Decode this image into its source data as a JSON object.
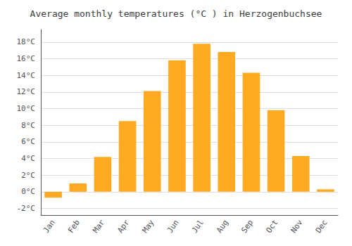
{
  "chart_data": {
    "type": "bar",
    "title": "Average monthly temperatures (°C ) in Herzogenbuchsee",
    "categories": [
      "Jan",
      "Feb",
      "Mar",
      "Apr",
      "May",
      "Jun",
      "Jul",
      "Aug",
      "Sep",
      "Oct",
      "Nov",
      "Dec"
    ],
    "values": [
      -0.7,
      1.0,
      4.2,
      8.5,
      12.1,
      15.8,
      17.8,
      16.8,
      14.3,
      9.8,
      4.3,
      0.3
    ],
    "color": "#FFAA22",
    "ylim": [
      -2.8,
      19.5
    ],
    "yticks": [
      {
        "value": -2,
        "label": "-2°C"
      },
      {
        "value": 0,
        "label": "0°C"
      },
      {
        "value": 2,
        "label": "2°C"
      },
      {
        "value": 4,
        "label": "4°C"
      },
      {
        "value": 6,
        "label": "6°C"
      },
      {
        "value": 8,
        "label": "8°C"
      },
      {
        "value": 10,
        "label": "10°C"
      },
      {
        "value": 12,
        "label": "12°C"
      },
      {
        "value": 14,
        "label": "14°C"
      },
      {
        "value": 16,
        "label": "16°C"
      },
      {
        "value": 18,
        "label": "18°C"
      }
    ],
    "grid": true
  }
}
